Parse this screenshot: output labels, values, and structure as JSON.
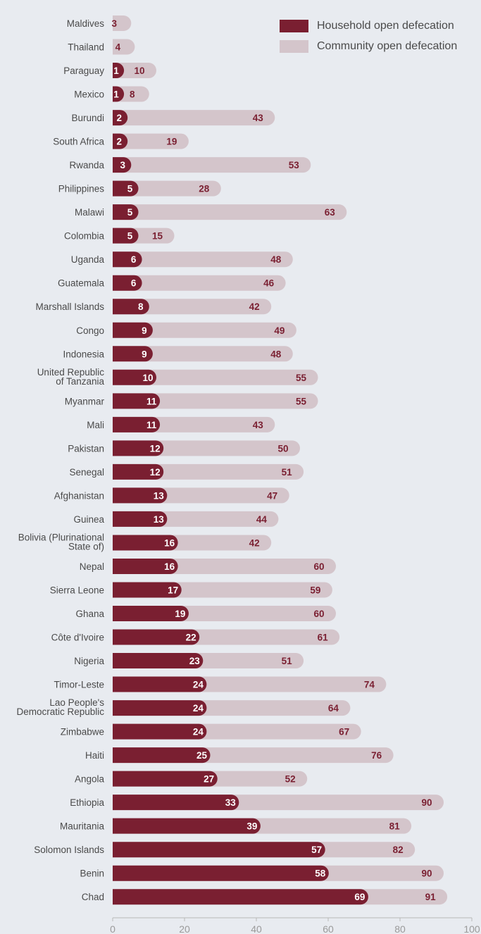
{
  "colors": {
    "household": "#7a1f31",
    "community": "#d4c5cb",
    "background": "#e8ebf0",
    "label": "#4a4a4a",
    "axis": "#b8b8b8",
    "tick": "#9a9a9a",
    "value_on_household": "#ffffff",
    "value_on_community": "#7a1f31"
  },
  "legend": {
    "household": "Household open defecation",
    "community": "Community open defecation"
  },
  "chart_data": {
    "type": "bar",
    "orientation": "horizontal",
    "xlim": [
      0,
      100
    ],
    "xticks": [
      0,
      20,
      40,
      60,
      80,
      100
    ],
    "legend_position": "top-right",
    "categories": [
      [
        "Maldives"
      ],
      [
        "Thailand"
      ],
      [
        "Paraguay"
      ],
      [
        "Mexico"
      ],
      [
        "Burundi"
      ],
      [
        "South Africa"
      ],
      [
        "Rwanda"
      ],
      [
        "Philippines"
      ],
      [
        "Malawi"
      ],
      [
        "Colombia"
      ],
      [
        "Uganda"
      ],
      [
        "Guatemala"
      ],
      [
        "Marshall Islands"
      ],
      [
        "Congo"
      ],
      [
        "Indonesia"
      ],
      [
        "United Republic",
        "of Tanzania"
      ],
      [
        "Myanmar"
      ],
      [
        "Mali"
      ],
      [
        "Pakistan"
      ],
      [
        "Senegal"
      ],
      [
        "Afghanistan"
      ],
      [
        "Guinea"
      ],
      [
        "Bolivia (Plurinational",
        "State of)"
      ],
      [
        "Nepal"
      ],
      [
        "Sierra Leone"
      ],
      [
        "Ghana"
      ],
      [
        "Côte d'Ivoire"
      ],
      [
        "Nigeria"
      ],
      [
        "Timor-Leste"
      ],
      [
        "Lao People's",
        "Democratic Republic"
      ],
      [
        "Zimbabwe"
      ],
      [
        "Haiti"
      ],
      [
        "Angola"
      ],
      [
        "Ethiopia"
      ],
      [
        "Mauritania"
      ],
      [
        "Solomon Islands"
      ],
      [
        "Benin"
      ],
      [
        "Chad"
      ]
    ],
    "series": [
      {
        "name": "Household open defecation",
        "values": [
          0,
          0,
          1,
          1,
          2,
          2,
          3,
          5,
          5,
          5,
          6,
          6,
          8,
          9,
          9,
          10,
          11,
          11,
          12,
          12,
          13,
          13,
          16,
          16,
          17,
          19,
          22,
          23,
          24,
          24,
          24,
          25,
          27,
          33,
          39,
          57,
          58,
          69
        ],
        "labels": [
          null,
          null,
          "1",
          "1",
          "2",
          "2",
          "3",
          "5",
          "5",
          "5",
          "6",
          "6",
          "8",
          "9",
          "9",
          "10",
          "11",
          "11",
          "12",
          "12",
          "13",
          "13",
          "16",
          "16",
          "17",
          "19",
          "22",
          "23",
          "24",
          "24",
          "24",
          "25",
          "27",
          "33",
          "39",
          "57",
          "58",
          "69"
        ]
      },
      {
        "name": "Community open defecation",
        "values": [
          3,
          4,
          10,
          8,
          43,
          19,
          53,
          28,
          63,
          15,
          48,
          46,
          42,
          49,
          48,
          55,
          55,
          43,
          50,
          51,
          47,
          44,
          42,
          60,
          59,
          60,
          61,
          51,
          74,
          64,
          67,
          76,
          52,
          90,
          81,
          82,
          90,
          91
        ],
        "labels": [
          "3",
          "4",
          "10",
          "8",
          "43",
          "19",
          "53",
          "28",
          "63",
          "15",
          "48",
          "46",
          "42",
          "49",
          "48",
          "55",
          "55",
          "43",
          "50",
          "51",
          "47",
          "44",
          "42",
          "60",
          "59",
          "60",
          "61",
          "51",
          "74",
          "64",
          "67",
          "76",
          "52",
          "90",
          "81",
          "82",
          "90",
          "91"
        ]
      }
    ]
  }
}
